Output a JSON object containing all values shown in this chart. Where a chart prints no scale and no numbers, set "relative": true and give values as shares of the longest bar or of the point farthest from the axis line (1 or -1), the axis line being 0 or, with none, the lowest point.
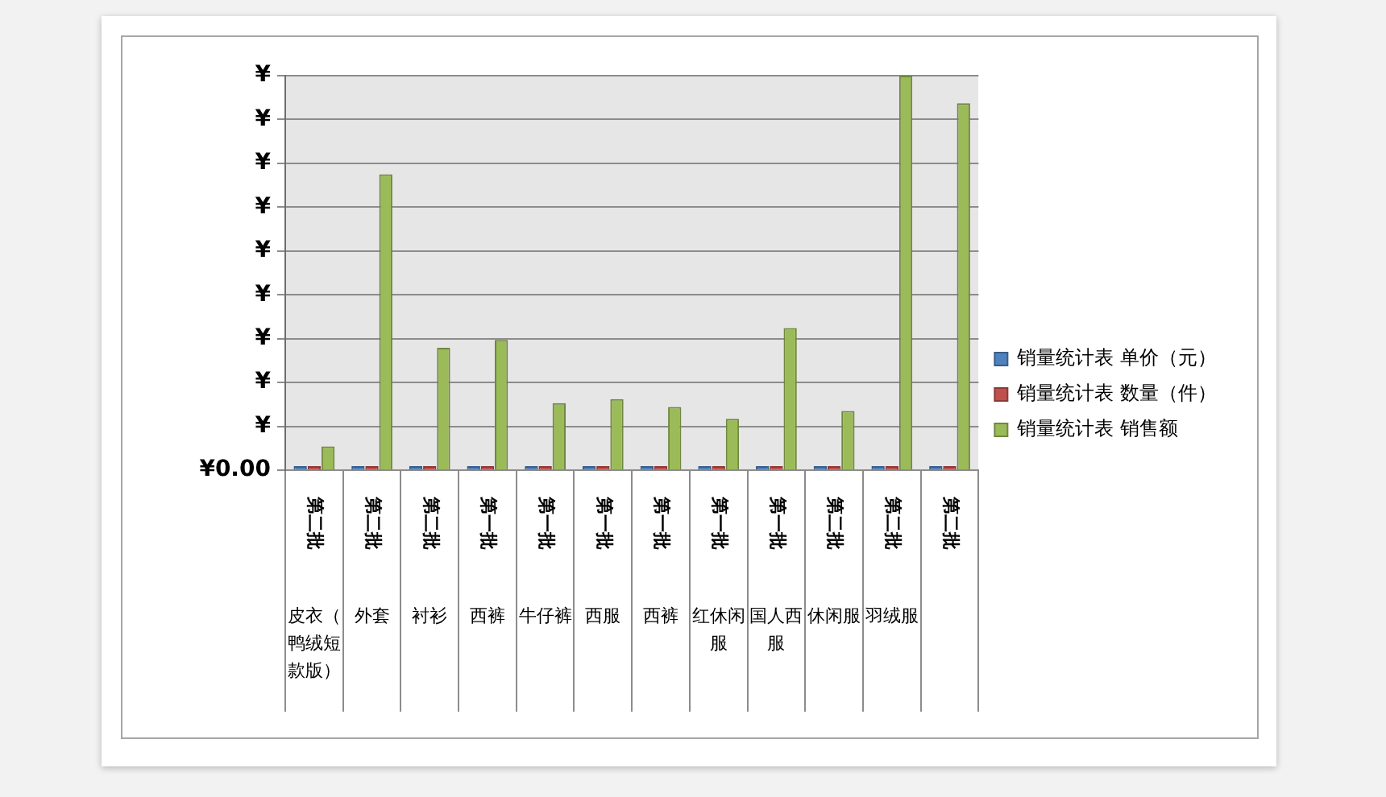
{
  "chart_data": {
    "type": "bar",
    "categories": [
      "皮衣（鸭绒短款版）",
      "外套",
      "衬衫",
      "西裤",
      "牛仔裤",
      "西服",
      "西裤",
      "红休闲服",
      "国人西服",
      "休闲服",
      "羽绒服",
      null
    ],
    "series": [
      {
        "name": "销量统计表 单价（元）",
        "color": "#4f81bd",
        "values": [
          0.01,
          0.01,
          0.01,
          0.01,
          0.01,
          0.01,
          0.01,
          0.01,
          0.01,
          0.01,
          0.01,
          0.01
        ]
      },
      {
        "name": "销量统计表 数量（件）",
        "color": "#c0504d",
        "values": [
          0.01,
          0.01,
          0.01,
          0.01,
          0.01,
          0.01,
          0.01,
          0.01,
          0.01,
          0.01,
          0.01,
          0.01
        ]
      },
      {
        "name": "销量统计表 销售额",
        "color": "#9bbb59",
        "values": [
          0.06,
          0.75,
          0.31,
          0.33,
          0.17,
          0.18,
          0.16,
          0.13,
          0.36,
          0.15,
          1,
          0.93
        ]
      }
    ],
    "relative": true,
    "annotations": [
      "¥",
      "¥",
      "¥",
      "¥",
      "¥",
      "¥",
      "¥",
      "¥",
      "¥",
      "¥0.00",
      "第二批",
      "第二批",
      "第二批",
      "第一批",
      "第一批",
      "第一批",
      "第一批",
      "第一批",
      "第一批",
      "第二批",
      "第二批",
      "第二批"
    ],
    "grid": "y",
    "legend": "right"
  }
}
